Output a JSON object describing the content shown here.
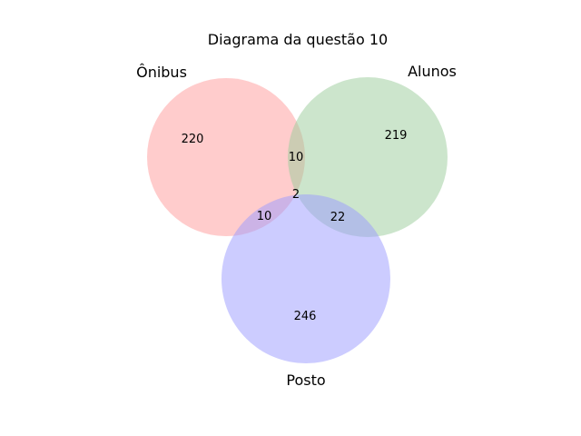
{
  "title": "Diagrama da questão 10",
  "sets": {
    "onibus": {
      "label": "Ônibus",
      "color": "#ff9999"
    },
    "alunos": {
      "label": "Alunos",
      "color": "#99cc99"
    },
    "posto": {
      "label": "Posto",
      "color": "#9999ff"
    }
  },
  "regions": {
    "onibus_only": "220",
    "alunos_only": "219",
    "posto_only": "246",
    "onibus_alunos": "10",
    "onibus_posto": "10",
    "alunos_posto": "22",
    "all_three": "2"
  }
}
